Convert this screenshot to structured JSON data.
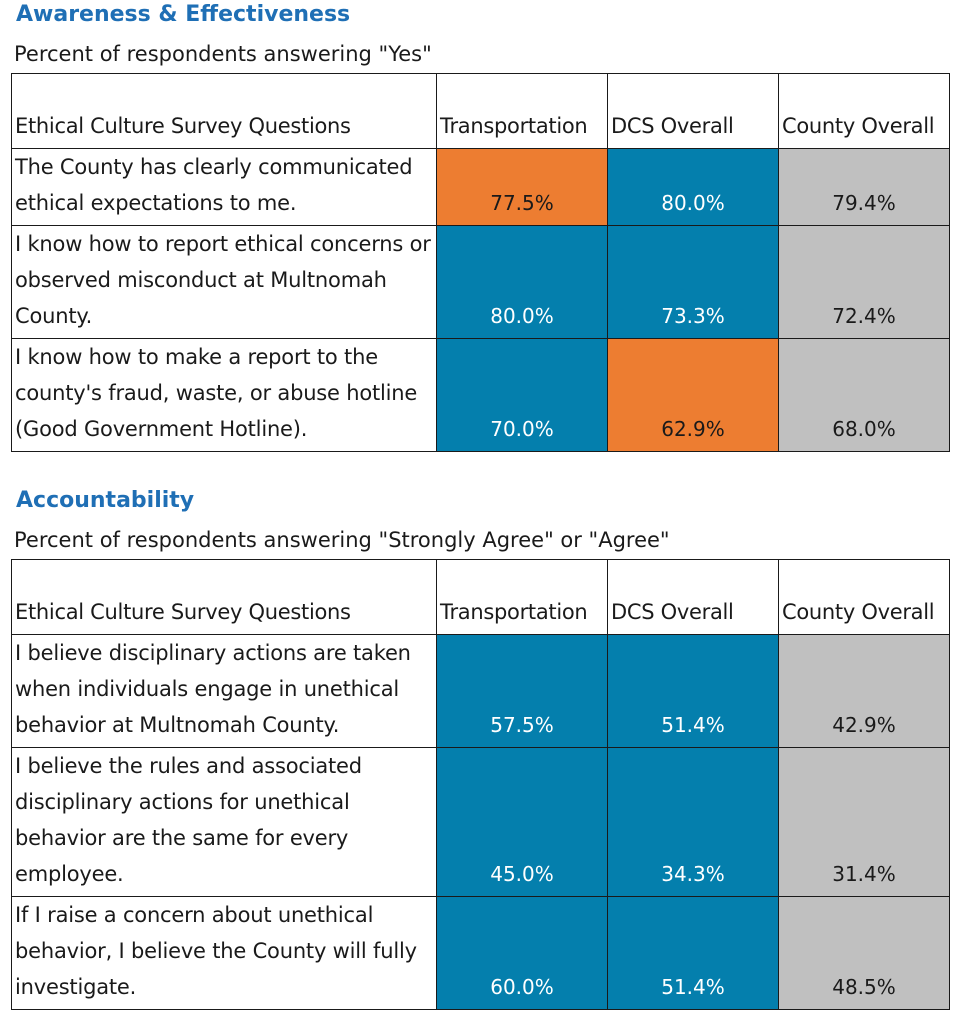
{
  "colors": {
    "title": "#1f6fb5",
    "blue": "#047fad",
    "orange": "#ed7d31",
    "gray": "#c0c0c0"
  },
  "sections": [
    {
      "title": "Awareness & Effectiveness",
      "subtitle": "Percent of respondents answering \"Yes\"",
      "headers": [
        "Ethical Culture Survey Questions",
        "Transportation",
        "DCS Overall",
        "County Overall"
      ],
      "rows": [
        {
          "question": "The County has clearly communicated ethical expectations to me.",
          "values": [
            {
              "text": "77.5%",
              "color": "orange"
            },
            {
              "text": "80.0%",
              "color": "blue"
            },
            {
              "text": "79.4%",
              "color": "gray"
            }
          ]
        },
        {
          "question": "I know how to report ethical concerns or observed misconduct at Multnomah County.",
          "values": [
            {
              "text": "80.0%",
              "color": "blue"
            },
            {
              "text": "73.3%",
              "color": "blue"
            },
            {
              "text": "72.4%",
              "color": "gray"
            }
          ]
        },
        {
          "question": "I know how to make a report to the county's fraud, waste, or abuse hotline (Good Government Hotline).",
          "values": [
            {
              "text": "70.0%",
              "color": "blue"
            },
            {
              "text": "62.9%",
              "color": "orange"
            },
            {
              "text": "68.0%",
              "color": "gray"
            }
          ]
        }
      ]
    },
    {
      "title": "Accountability",
      "subtitle": "Percent of respondents answering \"Strongly Agree\" or \"Agree\"",
      "headers": [
        "Ethical Culture Survey Questions",
        "Transportation",
        "DCS Overall",
        "County Overall"
      ],
      "rows": [
        {
          "question": "I believe disciplinary actions are taken when individuals engage in unethical behavior at Multnomah County.",
          "values": [
            {
              "text": "57.5%",
              "color": "blue"
            },
            {
              "text": "51.4%",
              "color": "blue"
            },
            {
              "text": "42.9%",
              "color": "gray"
            }
          ]
        },
        {
          "question": "I believe the rules and associated disciplinary actions for unethical behavior are the same for every employee.",
          "values": [
            {
              "text": "45.0%",
              "color": "blue"
            },
            {
              "text": "34.3%",
              "color": "blue"
            },
            {
              "text": "31.4%",
              "color": "gray"
            }
          ]
        },
        {
          "question": "If I raise a concern about unethical behavior, I believe the County will fully investigate.",
          "values": [
            {
              "text": "60.0%",
              "color": "blue"
            },
            {
              "text": "51.4%",
              "color": "blue"
            },
            {
              "text": "48.5%",
              "color": "gray"
            }
          ]
        }
      ]
    }
  ]
}
